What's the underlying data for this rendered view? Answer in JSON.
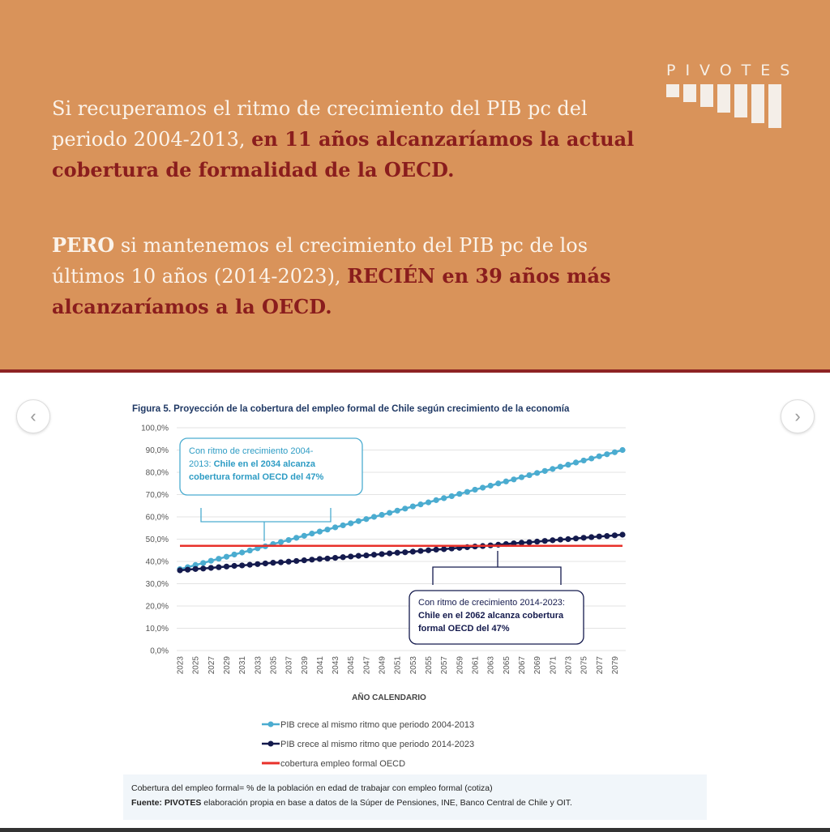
{
  "headline": {
    "p1_plain": "Si recuperamos el ritmo de crecimiento del PIB pc del periodo 2004-2013, ",
    "p1_bold": "en 11 años alcanzaríamos la actual cobertura de formalidad de la OECD.",
    "p2_bold_white": "PERO",
    "p2_plain": " si mantenemos el crecimiento del PIB pc de los últimos 10 años (2014-2023), ",
    "p2_bold": "RECIÉN en 39 años más alcanzaríamos a la OECD."
  },
  "logo": {
    "text": "PIVOTES"
  },
  "nav": {
    "prev": "‹",
    "next": "›"
  },
  "colors": {
    "orange": "#d9935a",
    "dark_red": "#8a1d1d",
    "light_series": "#4bacd0",
    "dark_series": "#141a4d",
    "oecd": "#e8302a"
  },
  "chart_data": {
    "type": "line",
    "title": "Figura 5.  Proyección de la cobertura del empleo formal de Chile según crecimiento de la economía",
    "xlabel": "AÑO CALENDARIO",
    "ylabel": "",
    "ylim": [
      0,
      100
    ],
    "yticks": [
      "0,0%",
      "10,0%",
      "20,0%",
      "30,0%",
      "40,0%",
      "50,0%",
      "60,0%",
      "70,0%",
      "80,0%",
      "90,0%",
      "100,0%"
    ],
    "x": [
      2023,
      2024,
      2025,
      2026,
      2027,
      2028,
      2029,
      2030,
      2031,
      2032,
      2033,
      2034,
      2035,
      2036,
      2037,
      2038,
      2039,
      2040,
      2041,
      2042,
      2043,
      2044,
      2045,
      2046,
      2047,
      2048,
      2049,
      2050,
      2051,
      2052,
      2053,
      2054,
      2055,
      2056,
      2057,
      2058,
      2059,
      2060,
      2061,
      2062,
      2063,
      2064,
      2065,
      2066,
      2067,
      2068,
      2069,
      2070,
      2071,
      2072,
      2073,
      2074,
      2075,
      2076,
      2077,
      2078,
      2079,
      2080
    ],
    "xtick_labels": [
      "2023",
      "2025",
      "2027",
      "2029",
      "2031",
      "2033",
      "2035",
      "2037",
      "2039",
      "2041",
      "2043",
      "2045",
      "2047",
      "2049",
      "2051",
      "2053",
      "2055",
      "2057",
      "2059",
      "2061",
      "2063",
      "2065",
      "2067",
      "2069",
      "2071",
      "2073",
      "2075",
      "2077",
      "2079"
    ],
    "grid": true,
    "legend_position": "bottom",
    "series": [
      {
        "name": "PIB crece al mismo ritmo que periodo 2004-2013",
        "color": "#4bacd0",
        "values": [
          36.5,
          37.4,
          38.4,
          39.3,
          40.3,
          41.2,
          42.1,
          43.1,
          44.0,
          44.9,
          45.9,
          46.8,
          47.8,
          48.7,
          49.6,
          50.6,
          51.5,
          52.5,
          53.4,
          54.3,
          55.3,
          56.2,
          57.1,
          58.1,
          59.0,
          60.0,
          60.9,
          61.8,
          62.8,
          63.7,
          64.7,
          65.6,
          66.5,
          67.5,
          68.4,
          69.3,
          70.3,
          71.2,
          72.2,
          73.1,
          74.0,
          75.0,
          75.9,
          76.8,
          77.8,
          78.7,
          79.7,
          80.6,
          81.5,
          82.5,
          83.4,
          84.4,
          85.3,
          86.2,
          87.2,
          88.1,
          89.0,
          90.0
        ]
      },
      {
        "name": "PIB crece al mismo ritmo que periodo 2014-2023",
        "color": "#141a4d",
        "values": [
          36.0,
          36.3,
          36.6,
          36.8,
          37.1,
          37.4,
          37.7,
          38.0,
          38.2,
          38.5,
          38.8,
          39.1,
          39.4,
          39.6,
          39.9,
          40.2,
          40.5,
          40.8,
          41.1,
          41.3,
          41.6,
          41.9,
          42.2,
          42.5,
          42.7,
          43.0,
          43.3,
          43.6,
          43.9,
          44.1,
          44.4,
          44.7,
          45.0,
          45.3,
          45.5,
          45.8,
          46.1,
          46.4,
          46.7,
          46.9,
          47.2,
          47.5,
          47.8,
          48.1,
          48.4,
          48.6,
          48.9,
          49.2,
          49.5,
          49.8,
          50.0,
          50.3,
          50.6,
          50.9,
          51.2,
          51.4,
          51.7,
          52.0
        ]
      },
      {
        "name": "cobertura empleo formal OECD",
        "color": "#e8302a",
        "constant": 47
      }
    ],
    "annotations": [
      {
        "line1": "Con ritmo de crecimiento 2004-",
        "line2a": "2013: ",
        "line2b": "Chile en el 2034 alcanza",
        "line3": "cobertura formal OECD del 47%"
      },
      {
        "line1": "Con ritmo de crecimiento 2014-2023:",
        "line2": "Chile en el 2062 alcanza cobertura",
        "line3": "formal OECD del 47%"
      }
    ]
  },
  "footnote": {
    "definition": "Cobertura del empleo formal= % de la población en edad de trabajar con empleo formal (cotiza)",
    "source_label": "Fuente: PIVOTES",
    "source_text": " elaboración propia en base a datos de la Súper de Pensiones, INE, Banco Central de Chile y OIT."
  }
}
